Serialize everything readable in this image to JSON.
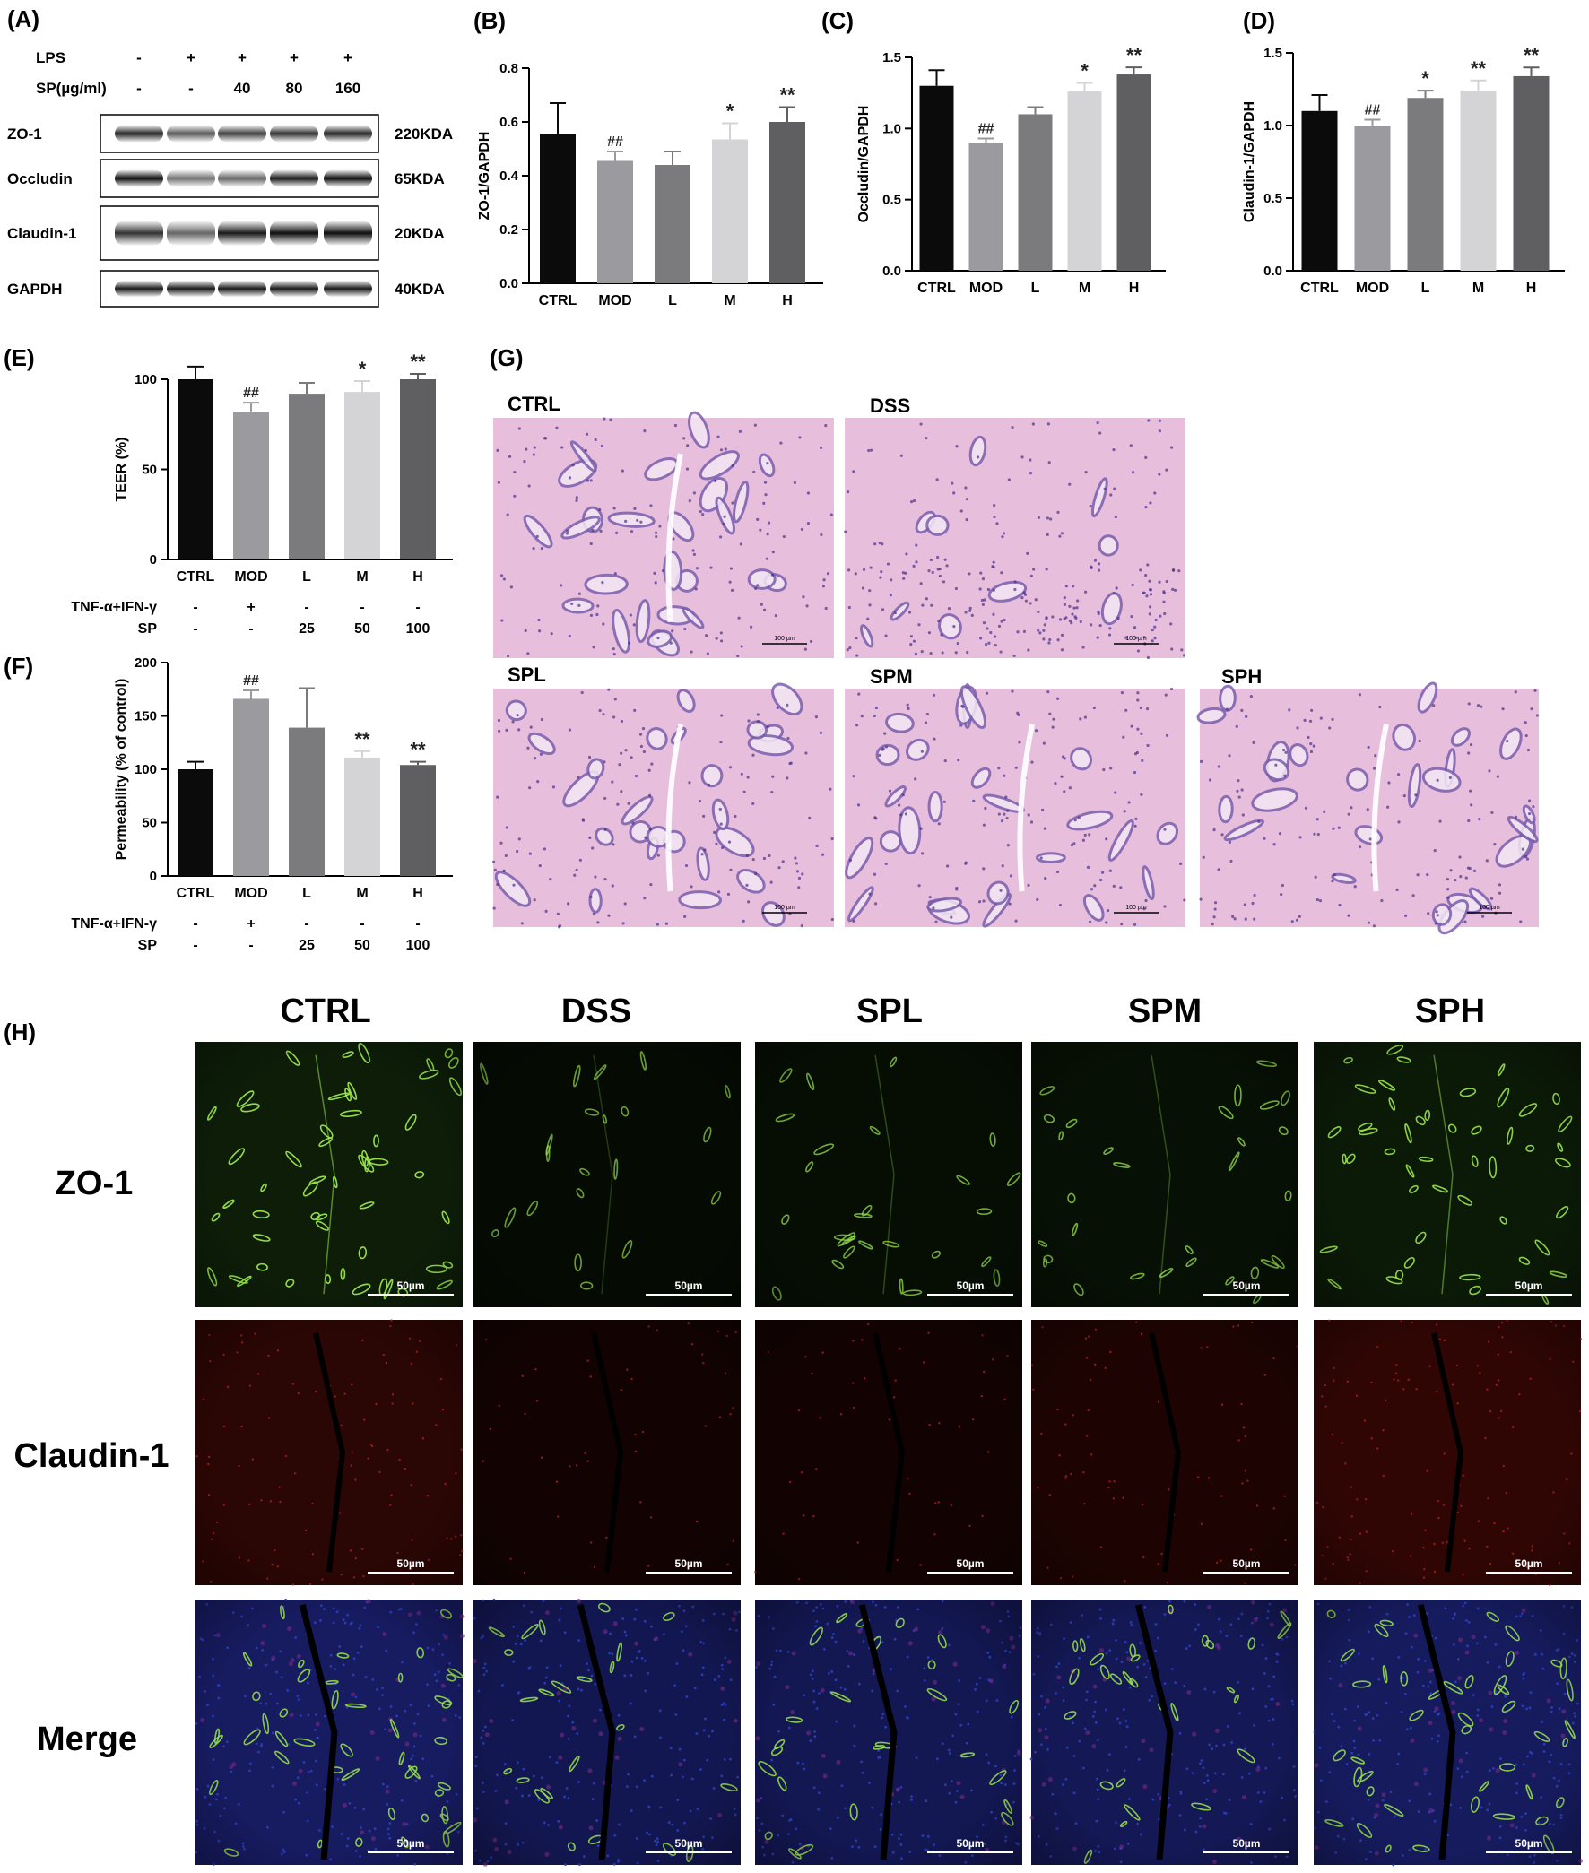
{
  "panel_letters": {
    "a": "(A)",
    "b": "(B)",
    "c": "(C)",
    "d": "(D)",
    "e": "(E)",
    "f": "(F)",
    "g": "(G)",
    "h": "(H)"
  },
  "colors": {
    "ctrl": "#0b0b0b",
    "mod": "#9a9a9f",
    "l": "#7b7b7e",
    "m": "#d4d4d6",
    "h": "#5f5f62",
    "he_pink": "#e7bfdc",
    "he_purple": "#7a5fae",
    "if_green": "#9be64a",
    "if_red": "#b0201e",
    "if_blue": "#2b3fbf"
  },
  "western": {
    "treat_rows": [
      {
        "label": "LPS",
        "values": [
          "-",
          "+",
          "+",
          "+",
          "+"
        ]
      },
      {
        "label": "SP(µg/ml)",
        "values": [
          "-",
          "-",
          "40",
          "80",
          "160"
        ]
      }
    ],
    "bands": [
      {
        "protein": "ZO-1",
        "size": "220KDA",
        "intensity": [
          0.85,
          0.65,
          0.75,
          0.8,
          0.85
        ]
      },
      {
        "protein": "Occludin",
        "size": "65KDA",
        "intensity": [
          0.95,
          0.55,
          0.6,
          0.9,
          0.95
        ]
      },
      {
        "protein": "Claudin-1",
        "size": "20KDA",
        "intensity": [
          0.8,
          0.6,
          0.9,
          0.95,
          0.95
        ]
      },
      {
        "protein": "GAPDH",
        "size": "40KDA",
        "intensity": [
          0.9,
          0.9,
          0.9,
          0.9,
          0.9
        ]
      }
    ]
  },
  "chart_data": [
    {
      "id": "B",
      "type": "bar",
      "ylabel": "ZO-1/GAPDH",
      "categories": [
        "CTRL",
        "MOD",
        "L",
        "M",
        "H"
      ],
      "values": [
        0.555,
        0.455,
        0.44,
        0.535,
        0.6
      ],
      "errors": [
        0.115,
        0.035,
        0.05,
        0.06,
        0.055
      ],
      "annotations": [
        "",
        "##",
        "",
        "*",
        "**"
      ],
      "ylim": [
        0,
        0.8
      ],
      "yticks": [
        "0.0",
        "0.2",
        "0.4",
        "0.6",
        "0.8"
      ]
    },
    {
      "id": "C",
      "type": "bar",
      "ylabel": "Occludin/GAPDH",
      "categories": [
        "CTRL",
        "MOD",
        "L",
        "M",
        "H"
      ],
      "values": [
        1.3,
        0.9,
        1.1,
        1.26,
        1.38
      ],
      "errors": [
        0.11,
        0.03,
        0.05,
        0.06,
        0.05
      ],
      "annotations": [
        "",
        "##",
        "",
        "*",
        "**"
      ],
      "ylim": [
        0,
        1.5
      ],
      "yticks": [
        "0.0",
        "0.5",
        "1.0",
        "1.5"
      ]
    },
    {
      "id": "D",
      "type": "bar",
      "ylabel": "Claudin-1/GAPDH",
      "categories": [
        "CTRL",
        "MOD",
        "L",
        "M",
        "H"
      ],
      "values": [
        1.1,
        1.0,
        1.19,
        1.24,
        1.34
      ],
      "errors": [
        0.11,
        0.04,
        0.05,
        0.07,
        0.06
      ],
      "annotations": [
        "",
        "##",
        "*",
        "**",
        "**"
      ],
      "ylim": [
        0,
        1.5
      ],
      "yticks": [
        "0.0",
        "0.5",
        "1.0",
        "1.5"
      ]
    },
    {
      "id": "E",
      "type": "bar",
      "ylabel": "TEER (%)",
      "categories": [
        "CTRL",
        "MOD",
        "L",
        "M",
        "H"
      ],
      "values": [
        100,
        82,
        92,
        93,
        100
      ],
      "errors": [
        7,
        5,
        6,
        6,
        3
      ],
      "annotations": [
        "",
        "##",
        "",
        "*",
        "**"
      ],
      "ylim": [
        0,
        100
      ],
      "yticks": [
        "0",
        "50",
        "100"
      ],
      "treatments": [
        {
          "label": "TNF-α+IFN-γ",
          "values": [
            "-",
            "+",
            "-",
            "-",
            "-"
          ]
        },
        {
          "label": "SP",
          "values": [
            "-",
            "-",
            "25",
            "50",
            "100"
          ]
        }
      ]
    },
    {
      "id": "F",
      "type": "bar",
      "ylabel": "Permeability (% of control)",
      "categories": [
        "CTRL",
        "MOD",
        "L",
        "M",
        "H"
      ],
      "values": [
        100,
        166,
        139,
        111,
        104
      ],
      "errors": [
        7,
        8,
        37,
        6,
        3
      ],
      "annotations": [
        "",
        "##",
        "",
        "**",
        "**"
      ],
      "ylim": [
        0,
        200
      ],
      "yticks": [
        "0",
        "50",
        "100",
        "150",
        "200"
      ],
      "treatments": [
        {
          "label": "TNF-α+IFN-γ",
          "values": [
            "-",
            "+",
            "-",
            "-",
            "-"
          ]
        },
        {
          "label": "SP",
          "values": [
            "-",
            "-",
            "25",
            "50",
            "100"
          ]
        }
      ]
    }
  ],
  "histology": {
    "panels": [
      {
        "label": "CTRL",
        "scale": "100 µm"
      },
      {
        "label": "DSS",
        "scale": "100 µm"
      },
      {
        "label": "SPL",
        "scale": "100 µm"
      },
      {
        "label": "SPM",
        "scale": "100 µm"
      },
      {
        "label": "SPH",
        "scale": "100 µm"
      }
    ]
  },
  "immuno": {
    "columns": [
      "CTRL",
      "DSS",
      "SPL",
      "SPM",
      "SPH"
    ],
    "rows": [
      {
        "label": "ZO-1",
        "channel": "green"
      },
      {
        "label": "Claudin-1",
        "channel": "red"
      },
      {
        "label": "Merge",
        "channel": "merge"
      }
    ],
    "scale_label": "50µm",
    "signal": [
      [
        0.9,
        0.35,
        0.45,
        0.5,
        0.8
      ],
      [
        0.8,
        0.35,
        0.35,
        0.55,
        0.9
      ],
      [
        0.9,
        0.45,
        0.5,
        0.55,
        0.85
      ]
    ]
  }
}
